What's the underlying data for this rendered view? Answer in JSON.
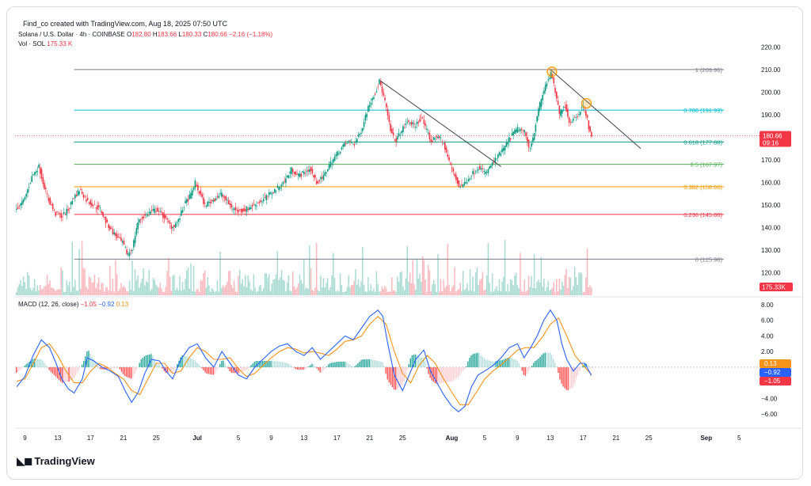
{
  "attribution": "Find_co created with TradingView.com, Aug 18, 2025 07:50 UTC",
  "header": {
    "symbol": "Solana / U.S. Dollar · 4h · COINBASE",
    "open_label": "O",
    "open": "182.80",
    "high_label": "H",
    "high": "183.66",
    "low_label": "L",
    "low": "180.33",
    "close_label": "C",
    "close": "180.66",
    "change": "−2.16 (−1.18%)",
    "vol_label": "Vol · SOL",
    "vol_value": "175.33 K"
  },
  "macd_header": {
    "label": "MACD (12, 26, close)",
    "macd": "−1.05",
    "signal": "−0.92",
    "hist": "0.13"
  },
  "logo_text": "TradingView",
  "colors": {
    "up": "#089981",
    "down": "#f23645",
    "macd": "#2962ff",
    "signal": "#f7931a"
  },
  "chart_data": [
    {
      "type": "candlestick",
      "ylim": [
        110,
        225
      ],
      "yticks": [
        "220.00",
        "210.00",
        "200.00",
        "190.00",
        "180.00",
        "170.00",
        "160.00",
        "150.00",
        "140.00",
        "130.00",
        "120.00"
      ],
      "yticks_values": [
        220,
        210,
        200,
        190,
        180,
        170,
        160,
        150,
        140,
        130,
        120
      ],
      "xticks": [
        {
          "label": "9",
          "day": 9
        },
        {
          "label": "13",
          "day": 13
        },
        {
          "label": "17",
          "day": 17
        },
        {
          "label": "21",
          "day": 21
        },
        {
          "label": "25",
          "day": 25
        },
        {
          "label": "Jul",
          "day": 30
        },
        {
          "label": "5",
          "day": 35
        },
        {
          "label": "9",
          "day": 39
        },
        {
          "label": "13",
          "day": 43
        },
        {
          "label": "17",
          "day": 47
        },
        {
          "label": "21",
          "day": 51
        },
        {
          "label": "25",
          "day": 55
        },
        {
          "label": "Aug",
          "day": 61
        },
        {
          "label": "5",
          "day": 65
        },
        {
          "label": "9",
          "day": 69
        },
        {
          "label": "13",
          "day": 73
        },
        {
          "label": "17",
          "day": 77
        },
        {
          "label": "21",
          "day": 81
        },
        {
          "label": "25",
          "day": 85
        },
        {
          "label": "Sep",
          "day": 92
        },
        {
          "label": "5",
          "day": 96
        }
      ],
      "xlim_days": [
        7.8,
        98
      ],
      "price_path": [
        [
          8,
          148
        ],
        [
          9,
          152
        ],
        [
          10,
          163
        ],
        [
          10.8,
          167
        ],
        [
          11.3,
          160
        ],
        [
          12,
          152
        ],
        [
          12.8,
          146
        ],
        [
          13.6,
          145
        ],
        [
          14.4,
          148
        ],
        [
          15,
          153
        ],
        [
          15.8,
          157
        ],
        [
          16.6,
          152
        ],
        [
          17.4,
          150
        ],
        [
          18.3,
          148
        ],
        [
          19,
          142
        ],
        [
          20,
          137
        ],
        [
          21,
          133
        ],
        [
          21.6,
          128
        ],
        [
          22.2,
          131
        ],
        [
          22.8,
          142
        ],
        [
          23.6,
          145
        ],
        [
          24.4,
          147
        ],
        [
          25.2,
          148
        ],
        [
          26.2,
          144
        ],
        [
          27,
          140
        ],
        [
          27.8,
          143
        ],
        [
          28.5,
          150
        ],
        [
          29.4,
          155
        ],
        [
          29.8,
          160
        ],
        [
          30.4,
          155
        ],
        [
          31,
          150
        ],
        [
          32,
          152
        ],
        [
          33,
          155
        ],
        [
          34,
          150
        ],
        [
          35,
          147
        ],
        [
          36,
          148
        ],
        [
          37,
          150
        ],
        [
          38,
          152
        ],
        [
          39,
          155
        ],
        [
          40,
          158
        ],
        [
          40.8,
          161
        ],
        [
          41.6,
          166
        ],
        [
          42.4,
          163
        ],
        [
          43,
          164
        ],
        [
          43.8,
          166
        ],
        [
          44.6,
          160
        ],
        [
          45.4,
          162
        ],
        [
          46.2,
          168
        ],
        [
          47,
          172
        ],
        [
          47.8,
          176
        ],
        [
          48.6,
          178
        ],
        [
          49.2,
          177
        ],
        [
          50,
          182
        ],
        [
          50.6,
          190
        ],
        [
          51.2,
          196
        ],
        [
          51.8,
          200
        ],
        [
          52.3,
          205
        ],
        [
          53,
          195
        ],
        [
          53.6,
          183
        ],
        [
          54.2,
          178
        ],
        [
          55,
          183
        ],
        [
          55.8,
          187
        ],
        [
          56.6,
          185
        ],
        [
          57.4,
          189
        ],
        [
          57.9,
          184
        ],
        [
          58.6,
          178
        ],
        [
          59.4,
          181
        ],
        [
          60.2,
          176
        ],
        [
          60.8,
          169
        ],
        [
          61.4,
          163
        ],
        [
          62,
          158
        ],
        [
          62.8,
          160
        ],
        [
          63.6,
          164
        ],
        [
          64.4,
          167
        ],
        [
          65.2,
          164
        ],
        [
          66,
          168
        ],
        [
          66.8,
          172
        ],
        [
          67.6,
          176
        ],
        [
          68.4,
          181
        ],
        [
          69.2,
          184
        ],
        [
          70,
          182
        ],
        [
          70.5,
          175
        ],
        [
          71,
          180
        ],
        [
          71.5,
          190
        ],
        [
          72,
          197
        ],
        [
          72.6,
          204
        ],
        [
          73.2,
          208
        ],
        [
          73.7,
          200
        ],
        [
          74.2,
          190
        ],
        [
          74.8,
          195
        ],
        [
          75.4,
          187
        ],
        [
          76,
          188
        ],
        [
          76.6,
          191
        ],
        [
          77,
          194
        ],
        [
          77.4,
          191
        ],
        [
          77.8,
          184
        ],
        [
          78,
          181
        ]
      ],
      "trendlines": [
        {
          "from": [
            52.3,
            205
          ],
          "to": [
            67,
            167
          ]
        },
        {
          "from": [
            73,
            210
          ],
          "to": [
            84,
            175
          ]
        }
      ],
      "fib_levels": [
        {
          "label": "1 (209.96)",
          "value": 209.96,
          "color": "#787b86"
        },
        {
          "label": "0.786 (191.99)",
          "value": 191.99,
          "color": "#00bcd4"
        },
        {
          "label": "0.618 (177.88)",
          "value": 177.88,
          "color": "#089981"
        },
        {
          "label": "0.5 (167.97)",
          "value": 167.97,
          "color": "#4caf50"
        },
        {
          "label": "0.382 (158.06)",
          "value": 158.06,
          "color": "#ff9800"
        },
        {
          "label": "0.236 (145.80)",
          "value": 145.8,
          "color": "#f23645"
        },
        {
          "label": "0 (125.98)",
          "value": 125.98,
          "color": "#787b86"
        }
      ],
      "fib_from_day": 15,
      "fib_to_day": 78,
      "circles": [
        [
          73.2,
          209
        ],
        [
          77.4,
          195
        ]
      ],
      "last_price": {
        "label": "180.66",
        "value": 180.66,
        "countdown": "09:16"
      },
      "volume_label": "175.33K"
    },
    {
      "type": "macd",
      "ylim": [
        -7.2,
        9
      ],
      "yticks": [
        "8.00",
        "6.00",
        "4.00",
        "2.00",
        "−2.00",
        "−4.00",
        "−6.00"
      ],
      "yticks_values": [
        8,
        6,
        4,
        2,
        -2,
        -4,
        -6
      ],
      "signal_tags": [
        {
          "label": "0.13",
          "value": 0.13,
          "color": "#f7931a"
        },
        {
          "label": "−0.92",
          "value": -0.92,
          "color": "#2962ff"
        },
        {
          "label": "−1.05",
          "value": -1.05,
          "color": "#f23645"
        }
      ],
      "macd_path": [
        [
          8,
          -2.5
        ],
        [
          9,
          -1.2
        ],
        [
          10,
          1.5
        ],
        [
          11,
          3.5
        ],
        [
          12,
          2.5
        ],
        [
          12.8,
          0.5
        ],
        [
          13.5,
          -1.5
        ],
        [
          14.3,
          -2.8
        ],
        [
          15,
          -3.3
        ],
        [
          16,
          -1.5
        ],
        [
          16.6,
          1.2
        ],
        [
          17.4,
          0.8
        ],
        [
          18.4,
          0
        ],
        [
          19.4,
          -0.5
        ],
        [
          20.4,
          -1.2
        ],
        [
          21.2,
          -3
        ],
        [
          22,
          -4.5
        ],
        [
          22.8,
          -3.2
        ],
        [
          23.6,
          -0.8
        ],
        [
          24.4,
          1
        ],
        [
          25.4,
          0.8
        ],
        [
          26.2,
          -0.5
        ],
        [
          27,
          -1.5
        ],
        [
          28,
          1
        ],
        [
          29,
          2.5
        ],
        [
          30,
          3
        ],
        [
          31,
          1.2
        ],
        [
          32,
          0
        ],
        [
          33,
          2
        ],
        [
          34,
          0.5
        ],
        [
          35,
          -1
        ],
        [
          36,
          -1.5
        ],
        [
          37,
          0
        ],
        [
          38,
          1
        ],
        [
          39,
          2
        ],
        [
          40,
          2.7
        ],
        [
          41,
          3
        ],
        [
          42,
          2
        ],
        [
          43,
          1.5
        ],
        [
          44,
          2.5
        ],
        [
          45,
          1
        ],
        [
          46,
          2
        ],
        [
          47,
          3
        ],
        [
          48,
          4
        ],
        [
          49,
          3.5
        ],
        [
          50,
          5
        ],
        [
          51,
          6.5
        ],
        [
          52,
          7.3
        ],
        [
          52.6,
          6.5
        ],
        [
          53.2,
          3
        ],
        [
          54,
          -1
        ],
        [
          55,
          -3
        ],
        [
          55.8,
          -1
        ],
        [
          56.6,
          1
        ],
        [
          57.6,
          2.2
        ],
        [
          58.4,
          -0.5
        ],
        [
          59.2,
          -2
        ],
        [
          60,
          -3.5
        ],
        [
          61,
          -5
        ],
        [
          61.8,
          -5.7
        ],
        [
          62.6,
          -5
        ],
        [
          63.4,
          -2.5
        ],
        [
          64.2,
          -1
        ],
        [
          65,
          -0.5
        ],
        [
          66,
          0.2
        ],
        [
          67,
          1.2
        ],
        [
          68,
          2.5
        ],
        [
          69,
          3
        ],
        [
          69.8,
          1.2
        ],
        [
          70.6,
          2.5
        ],
        [
          71.4,
          4
        ],
        [
          72.2,
          6
        ],
        [
          73,
          7.3
        ],
        [
          73.8,
          6
        ],
        [
          74.4,
          3
        ],
        [
          75,
          1
        ],
        [
          75.8,
          -0.5
        ],
        [
          76.6,
          0.5
        ],
        [
          77.2,
          0.5
        ],
        [
          78,
          -1.05
        ]
      ],
      "signal_path": [
        [
          8,
          -1.8
        ],
        [
          9,
          -1.5
        ],
        [
          10,
          0.4
        ],
        [
          11,
          2.5
        ],
        [
          12,
          3
        ],
        [
          13,
          1.5
        ],
        [
          14,
          -0.5
        ],
        [
          15,
          -2
        ],
        [
          16,
          -2
        ],
        [
          17,
          -0.5
        ],
        [
          18,
          0.5
        ],
        [
          19,
          0
        ],
        [
          20,
          -0.8
        ],
        [
          21,
          -1.5
        ],
        [
          22,
          -3
        ],
        [
          23,
          -3.5
        ],
        [
          24,
          -1.5
        ],
        [
          25,
          0.5
        ],
        [
          26,
          0.5
        ],
        [
          27,
          -0.8
        ],
        [
          28,
          -0.5
        ],
        [
          29,
          1.2
        ],
        [
          30,
          2.5
        ],
        [
          31,
          2
        ],
        [
          32,
          1
        ],
        [
          33,
          1
        ],
        [
          34,
          1.2
        ],
        [
          35,
          -0.2
        ],
        [
          36,
          -1.2
        ],
        [
          37,
          -0.8
        ],
        [
          38,
          0.2
        ],
        [
          39,
          1.2
        ],
        [
          40,
          2
        ],
        [
          41,
          2.5
        ],
        [
          42,
          2.3
        ],
        [
          43,
          1.8
        ],
        [
          44,
          2
        ],
        [
          45,
          1.8
        ],
        [
          46,
          1.5
        ],
        [
          47,
          2.3
        ],
        [
          48,
          3.3
        ],
        [
          49,
          3.5
        ],
        [
          50,
          4
        ],
        [
          51,
          5.5
        ],
        [
          52,
          6.5
        ],
        [
          53,
          5.5
        ],
        [
          54,
          2
        ],
        [
          55,
          -0.8
        ],
        [
          56,
          -2
        ],
        [
          57,
          0.2
        ],
        [
          58,
          1.5
        ],
        [
          59,
          0.5
        ],
        [
          60,
          -1.5
        ],
        [
          61,
          -3.2
        ],
        [
          62,
          -4.8
        ],
        [
          63,
          -4.8
        ],
        [
          64,
          -3.2
        ],
        [
          65,
          -1.5
        ],
        [
          66,
          -0.5
        ],
        [
          67,
          0.3
        ],
        [
          68,
          1.2
        ],
        [
          69,
          2.2
        ],
        [
          70,
          2.5
        ],
        [
          71,
          2.5
        ],
        [
          72,
          3.8
        ],
        [
          73,
          5.5
        ],
        [
          74,
          6.3
        ],
        [
          75,
          4
        ],
        [
          76,
          1.5
        ],
        [
          77,
          0.2
        ],
        [
          78,
          -0.92
        ]
      ]
    }
  ]
}
